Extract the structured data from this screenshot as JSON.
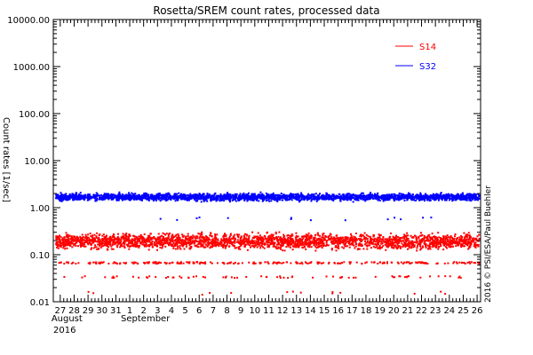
{
  "chart_data": {
    "type": "scatter",
    "title": "Rosetta/SREM count rates, processed data",
    "ylabel": "Count rates [1/sec]",
    "xlabel": "",
    "credit": "2016 © PSI/ESA/Paul Buehler",
    "y_scale": "log",
    "ylim": [
      0.01,
      10000
    ],
    "y_ticks": [
      "10000.00",
      "1000.00",
      "100.00",
      "10.00",
      "1.00",
      "0.10",
      "0.01"
    ],
    "x_range": [
      "2016-08-26T12:00",
      "2016-09-26T06:00"
    ],
    "x_ticks": [
      "27",
      "28",
      "29",
      "30",
      "31",
      "1",
      "2",
      "3",
      "4",
      "5",
      "6",
      "7",
      "8",
      "9",
      "10",
      "11",
      "12",
      "13",
      "14",
      "15",
      "16",
      "17",
      "18",
      "19",
      "20",
      "21",
      "22",
      "23",
      "24",
      "25",
      "26"
    ],
    "x_month_labels": [
      {
        "text": "August",
        "at_tick": "27"
      },
      {
        "text": "September",
        "at_tick": "1"
      }
    ],
    "x_year_label": "2016",
    "grid": false,
    "legend_position": "top-right",
    "series": [
      {
        "name": "S14",
        "color": "#ff0000",
        "median": 0.2,
        "spread_low": 0.12,
        "spread_high": 0.34,
        "floor_level": 0.07,
        "outlier_low": 0.016
      },
      {
        "name": "S32",
        "color": "#0000ff",
        "median": 1.75,
        "spread_low": 1.35,
        "spread_high": 2.2,
        "outlier_low": 0.6
      }
    ]
  }
}
